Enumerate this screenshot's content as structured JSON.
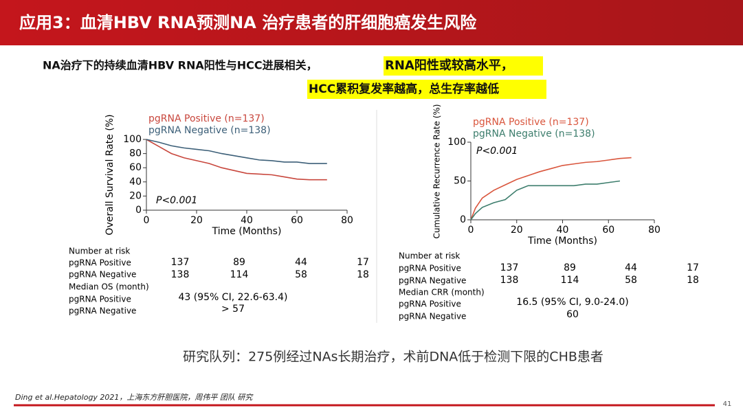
{
  "header": {
    "title": "应用3：血清HBV RNA预测NA 治疗患者的肝细胞癌发生风险"
  },
  "subtitle": {
    "line1": "NA治疗下的持续血清HBV RNA阳性与HCC进展相关，",
    "highlight1": "RNA阳性或较高水平，",
    "highlight2": "HCC累积复发率越高，总生存率越低"
  },
  "chart_data": [
    {
      "type": "line",
      "ylabel": "Overall Survival Rate (%)",
      "xlabel": "Time (Months)",
      "annotation": "P<0.001",
      "x": [
        0,
        5,
        10,
        15,
        20,
        25,
        30,
        35,
        40,
        45,
        50,
        55,
        60,
        65,
        70,
        72
      ],
      "series": [
        {
          "name": "pgRNA Positive (n=137)",
          "color": "#c8463c",
          "values": [
            100,
            90,
            80,
            74,
            70,
            66,
            60,
            56,
            52,
            51,
            50,
            47,
            44,
            43,
            43,
            43
          ]
        },
        {
          "name": "pgRNA Negative (n=138)",
          "color": "#3c5f78",
          "values": [
            100,
            96,
            91,
            88,
            86,
            84,
            80,
            77,
            74,
            71,
            70,
            68,
            68,
            66,
            66,
            66
          ]
        }
      ],
      "xlim": [
        0,
        80
      ],
      "xticks": [
        0,
        20,
        40,
        60,
        80
      ],
      "ylim": [
        0,
        100
      ],
      "yticks": [
        0,
        20,
        40,
        60,
        80,
        100
      ]
    },
    {
      "type": "line",
      "ylabel": "Cumulative Recurrence Rate (%)",
      "xlabel": "Time (Months)",
      "annotation": "P<0.001",
      "x": [
        0,
        2,
        5,
        10,
        15,
        20,
        25,
        30,
        35,
        40,
        45,
        50,
        55,
        60,
        65,
        70
      ],
      "series": [
        {
          "name": "pgRNA Positive (n=137)",
          "color": "#d9553c",
          "values": [
            0,
            15,
            28,
            38,
            45,
            52,
            57,
            62,
            66,
            70,
            72,
            74,
            75,
            77,
            79,
            80
          ]
        },
        {
          "name": "pgRNA Negative (n=138)",
          "color": "#3c7d6c",
          "values": [
            0,
            8,
            16,
            22,
            26,
            38,
            44,
            44,
            44,
            44,
            44,
            46,
            46,
            48,
            50,
            null
          ]
        }
      ],
      "xlim": [
        0,
        80
      ],
      "xticks": [
        0,
        20,
        40,
        60,
        80
      ],
      "ylim": [
        0,
        100
      ],
      "yticks": [
        0,
        50,
        100
      ]
    }
  ],
  "tables": [
    {
      "labels": [
        "Number at risk",
        "pgRNA Positive",
        "pgRNA Negative",
        "Median OS (month)",
        "pgRNA Positive",
        "pgRNA Negative"
      ],
      "rows": [
        [
          137,
          89,
          44,
          17
        ],
        [
          138,
          114,
          58,
          18
        ]
      ],
      "medians": [
        "43 (95% CI, 22.6-63.4)",
        "> 57"
      ]
    },
    {
      "labels": [
        "Number at risk",
        "pgRNA Positive",
        "pgRNA Negative",
        "Median CRR (month)",
        "pgRNA Positive",
        "pgRNA Negative"
      ],
      "rows": [
        [
          137,
          89,
          44,
          17
        ],
        [
          138,
          114,
          58,
          18
        ]
      ],
      "medians": [
        "16.5 (95% CI, 9.0-24.0)",
        "60"
      ]
    }
  ],
  "cohort": "研究队列：275例经过NAs长期治疗，术前DNA低于检测下限的CHB患者",
  "footer": {
    "citation": "Ding et al.Hepatology 2021，上海东方肝胆医院，周伟平 团队 研究",
    "page": "41"
  }
}
